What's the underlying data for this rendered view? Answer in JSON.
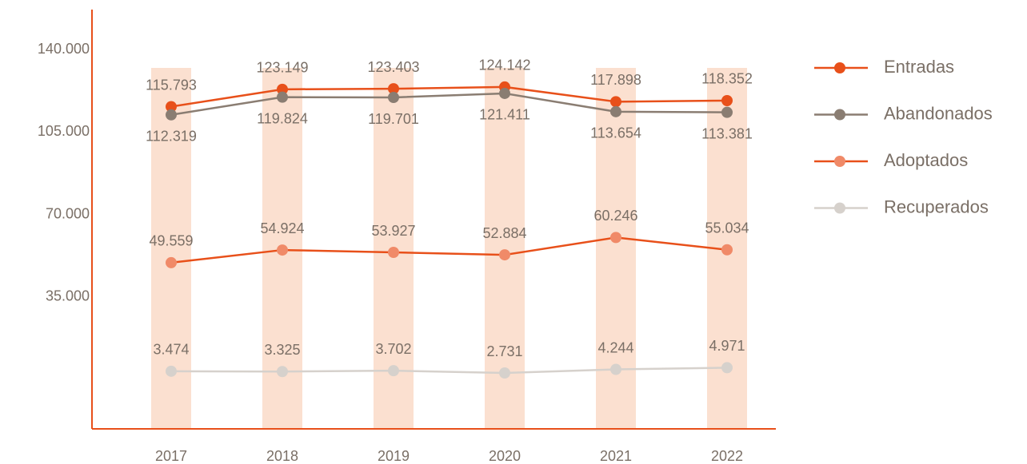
{
  "chart_data": {
    "type": "line",
    "categories": [
      "2017",
      "2018",
      "2019",
      "2020",
      "2021",
      "2022"
    ],
    "series": [
      {
        "name": "Entradas",
        "color": "#e8501a",
        "marker_color": "#e8501a",
        "values": [
          115793,
          123149,
          123403,
          124142,
          117898,
          118352
        ],
        "value_labels": [
          "115.793",
          "123.149",
          "123.403",
          "124.142",
          "117.898",
          "118.352"
        ]
      },
      {
        "name": "Abandonados",
        "color": "#8a7d72",
        "marker_color": "#8a7d72",
        "values": [
          112319,
          119824,
          119701,
          121411,
          113654,
          113381
        ],
        "value_labels": [
          "112.319",
          "119.824",
          "119.701",
          "121.411",
          "113.654",
          "113.381"
        ]
      },
      {
        "name": "Adoptados",
        "color": "#e8501a",
        "marker_color": "#f08a68",
        "values": [
          49559,
          54924,
          53927,
          52884,
          60246,
          55034
        ],
        "value_labels": [
          "49.559",
          "54.924",
          "53.927",
          "52.884",
          "60.246",
          "55.034"
        ]
      },
      {
        "name": "Recuperados",
        "color": "#d6d1cc",
        "marker_color": "#d6d1cc",
        "values": [
          3474,
          3325,
          3702,
          2731,
          4244,
          4971
        ],
        "value_labels": [
          "3.474",
          "3.325",
          "3.702",
          "2.731",
          "4.244",
          "4.971"
        ]
      }
    ],
    "ylim": [
      -21000,
      157000
    ],
    "yticks": [
      {
        "value": 35000,
        "label": "35.000"
      },
      {
        "value": 70000,
        "label": "70.000"
      },
      {
        "value": 105000,
        "label": "105.000"
      },
      {
        "value": 140000,
        "label": "140.000"
      }
    ],
    "legend": "right"
  }
}
